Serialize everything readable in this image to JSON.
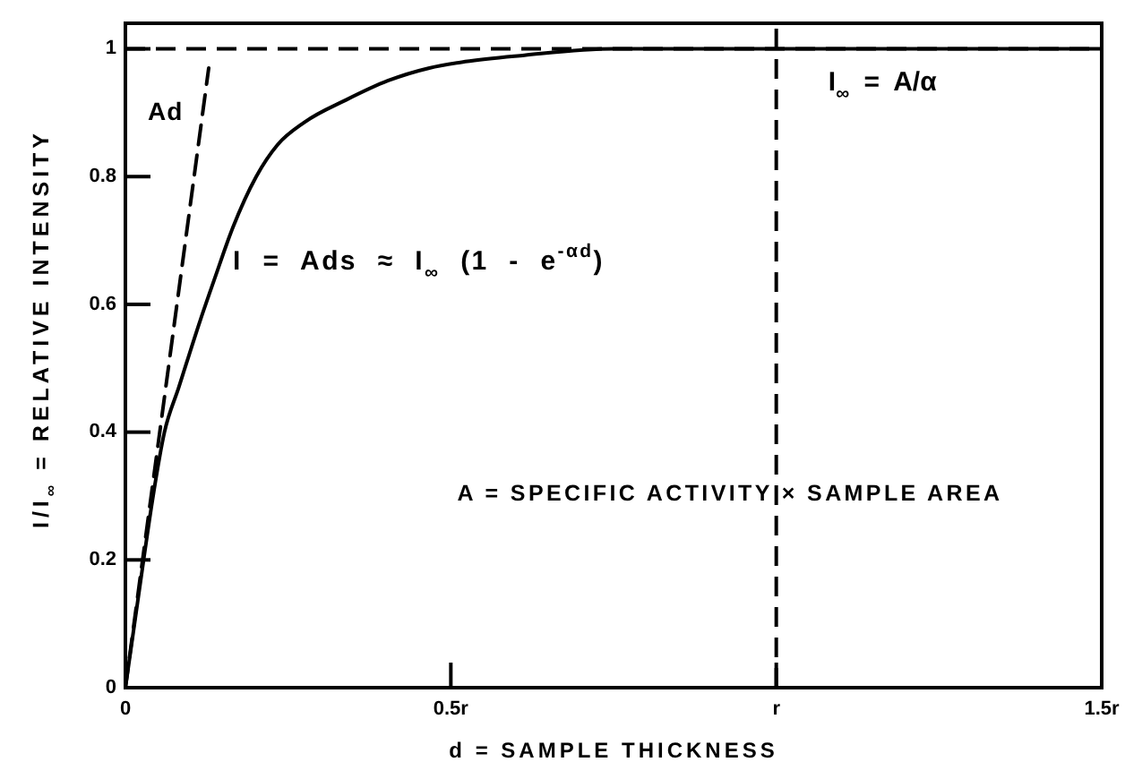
{
  "chart_data": {
    "type": "line",
    "xlabel": "d = SAMPLE THICKNESS",
    "ylabel": "I/I$_{∞}$ = RELATIVE INTENSITY",
    "xlim": [
      0,
      1.5
    ],
    "ylim": [
      0,
      1.04
    ],
    "xticks": [
      0,
      {
        "value": 0.5,
        "label": "0.5r"
      },
      {
        "value": 1,
        "label": "r"
      },
      {
        "value": 1.5,
        "label": "1.5r"
      }
    ],
    "yticks": [
      0,
      0.2,
      0.4,
      0.6,
      0.8,
      1
    ],
    "series": [
      {
        "name": "I = Ads ≈ I$_{∞}$ (1 - e$^{-αd}$)",
        "color": "#000000",
        "line_style": "solid",
        "x": [
          0,
          0.028,
          0.041,
          0.06,
          0.082,
          0.115,
          0.137,
          0.165,
          0.201,
          0.234,
          0.275,
          0.339,
          0.403,
          0.467,
          0.522,
          0.613,
          0.75,
          1.0,
          1.5
        ],
        "values": [
          0,
          0.2,
          0.29,
          0.4,
          0.47,
          0.575,
          0.64,
          0.72,
          0.8,
          0.85,
          0.885,
          0.92,
          0.95,
          0.97,
          0.98,
          0.99,
          1.0,
          1.0,
          1.0
        ]
      },
      {
        "name": "Ad",
        "color": "#000000",
        "line_style": "dashed",
        "x": [
          0,
          0.128
        ],
        "values": [
          0,
          0.97
        ]
      }
    ],
    "ref_lines": [
      {
        "axis": "y",
        "value": 1,
        "label": "I$_{∞}$ = A/α",
        "line_style": "dashed",
        "color": "#000000"
      },
      {
        "axis": "x",
        "value": 1,
        "line_style": "dashed",
        "color": "#000000"
      }
    ],
    "annotations": [
      "A = SPECIFIC ACTIVITY × SAMPLE AREA"
    ]
  }
}
